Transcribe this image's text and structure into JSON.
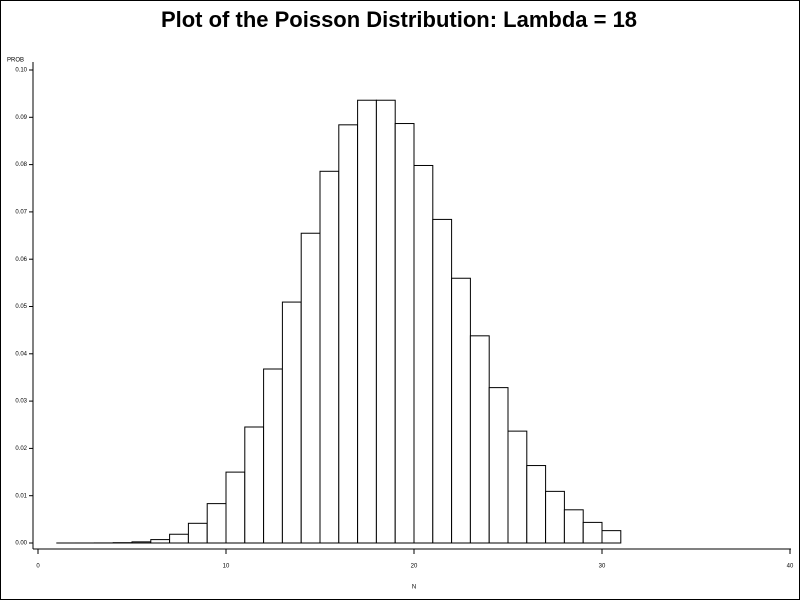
{
  "chart_data": {
    "type": "histogram",
    "title": "Plot of the Poisson Distribution: Lambda =  18",
    "y_label": "PROB",
    "x_label": "N",
    "bins": [
      1,
      2,
      3,
      4,
      5,
      6,
      7,
      8,
      9,
      10,
      11,
      12,
      13,
      14,
      15,
      16,
      17,
      18,
      19,
      20,
      21,
      22,
      23,
      24,
      25,
      26,
      27,
      28,
      29,
      30,
      31
    ],
    "values": [
      3e-07,
      2.5e-06,
      1.48e-05,
      6.66e-05,
      0.0002398,
      0.0007196,
      0.00185,
      0.004163,
      0.008326,
      0.014987,
      0.024524,
      0.036786,
      0.050935,
      0.065488,
      0.078585,
      0.088408,
      0.093609,
      0.093609,
      0.088682,
      0.079814,
      0.068412,
      0.055973,
      0.0438,
      0.03285,
      0.023652,
      0.016374,
      0.010916,
      0.007018,
      0.004356,
      0.002613
    ],
    "color": "#ffffff",
    "xlim": [
      0,
      40
    ],
    "xticks": [
      0,
      10,
      20,
      30,
      40
    ],
    "ylim": [
      0,
      0.1
    ],
    "yticks": [
      {
        "value": 0,
        "label": "0.00"
      },
      {
        "value": 0.01,
        "label": "0.01"
      },
      {
        "value": 0.02,
        "label": "0.02"
      },
      {
        "value": 0.03,
        "label": "0.03"
      },
      {
        "value": 0.04,
        "label": "0.04"
      },
      {
        "value": 0.05,
        "label": "0.05"
      },
      {
        "value": 0.06,
        "label": "0.06"
      },
      {
        "value": 0.07,
        "label": "0.07"
      },
      {
        "value": 0.08,
        "label": "0.08"
      },
      {
        "value": 0.09,
        "label": "0.09"
      },
      {
        "value": 0.1,
        "label": "0.10"
      }
    ]
  }
}
